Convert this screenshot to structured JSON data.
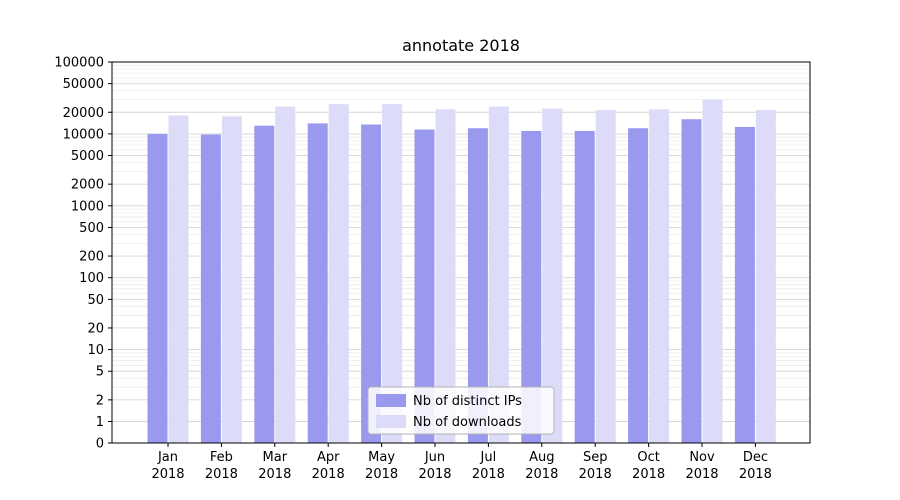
{
  "chart_data": {
    "type": "bar",
    "title": "annotate 2018",
    "categories": [
      "Jan",
      "Feb",
      "Mar",
      "Apr",
      "May",
      "Jun",
      "Jul",
      "Aug",
      "Sep",
      "Oct",
      "Nov",
      "Dec"
    ],
    "year_label": "2018",
    "series": [
      {
        "name": "Nb of distinct IPs",
        "color": "#9999ee",
        "values": [
          10000,
          9800,
          13000,
          14000,
          13500,
          11500,
          12000,
          11000,
          11000,
          12000,
          16000,
          12500
        ]
      },
      {
        "name": "Nb of downloads",
        "color": "#dcdcf8",
        "values": [
          18000,
          17500,
          24000,
          26000,
          26000,
          22000,
          24000,
          22500,
          21500,
          22000,
          30000,
          21500
        ]
      }
    ],
    "yscale": "symlog",
    "yticks": [
      0,
      1,
      2,
      5,
      10,
      20,
      50,
      100,
      200,
      500,
      1000,
      2000,
      5000,
      10000,
      20000,
      50000,
      100000
    ],
    "ylim": [
      0,
      100000
    ],
    "xlabel": "",
    "ylabel": "",
    "grid": true,
    "legend_position": "lower center"
  },
  "style": {
    "grid_major_color": "#d5d5d5",
    "grid_minor_color": "#ebebeb",
    "spine_color": "#000000",
    "legend_border_color": "#b3b3b3",
    "legend_bg_color": "#ffffff",
    "background": "#ffffff"
  }
}
